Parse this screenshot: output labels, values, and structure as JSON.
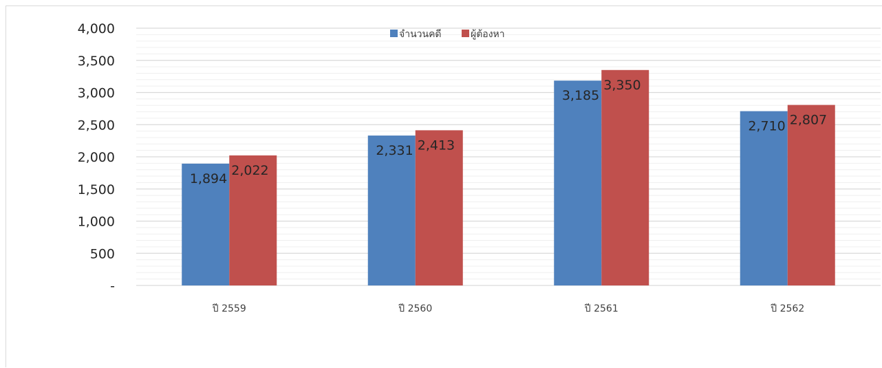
{
  "colors": {
    "series_0": "#4f81bd",
    "series_1": "#c0504d",
    "major_grid": "#d9d9d9",
    "minor_grid": "#efefef",
    "axis": "#d9d9d9"
  },
  "chart_data": {
    "type": "bar",
    "title": "",
    "xlabel": "",
    "ylabel": "",
    "categories": [
      "ปี 2559",
      "ปี 2560",
      "ปี 2561",
      "ปี 2562"
    ],
    "series": [
      {
        "name": "จำนวนคดี",
        "values": [
          1894,
          2331,
          3185,
          2710
        ]
      },
      {
        "name": "ผู้ต้องหา",
        "values": [
          2022,
          2413,
          3350,
          2807
        ]
      }
    ],
    "data_labels": [
      [
        "1,894",
        "2,331",
        "3,185",
        "2,710"
      ],
      [
        "2,022",
        "2,413",
        "3,350",
        "2,807"
      ]
    ],
    "ylim": [
      0,
      4000
    ],
    "y_ticks": [
      0,
      500,
      1000,
      1500,
      2000,
      2500,
      3000,
      3500,
      4000
    ],
    "y_tick_labels": [
      "-",
      "500",
      "1,000",
      "1,500",
      "2,000",
      "2,500",
      "3,000",
      "3,500",
      "4,000"
    ],
    "minor_grid": true,
    "legend_position": "top-center"
  }
}
